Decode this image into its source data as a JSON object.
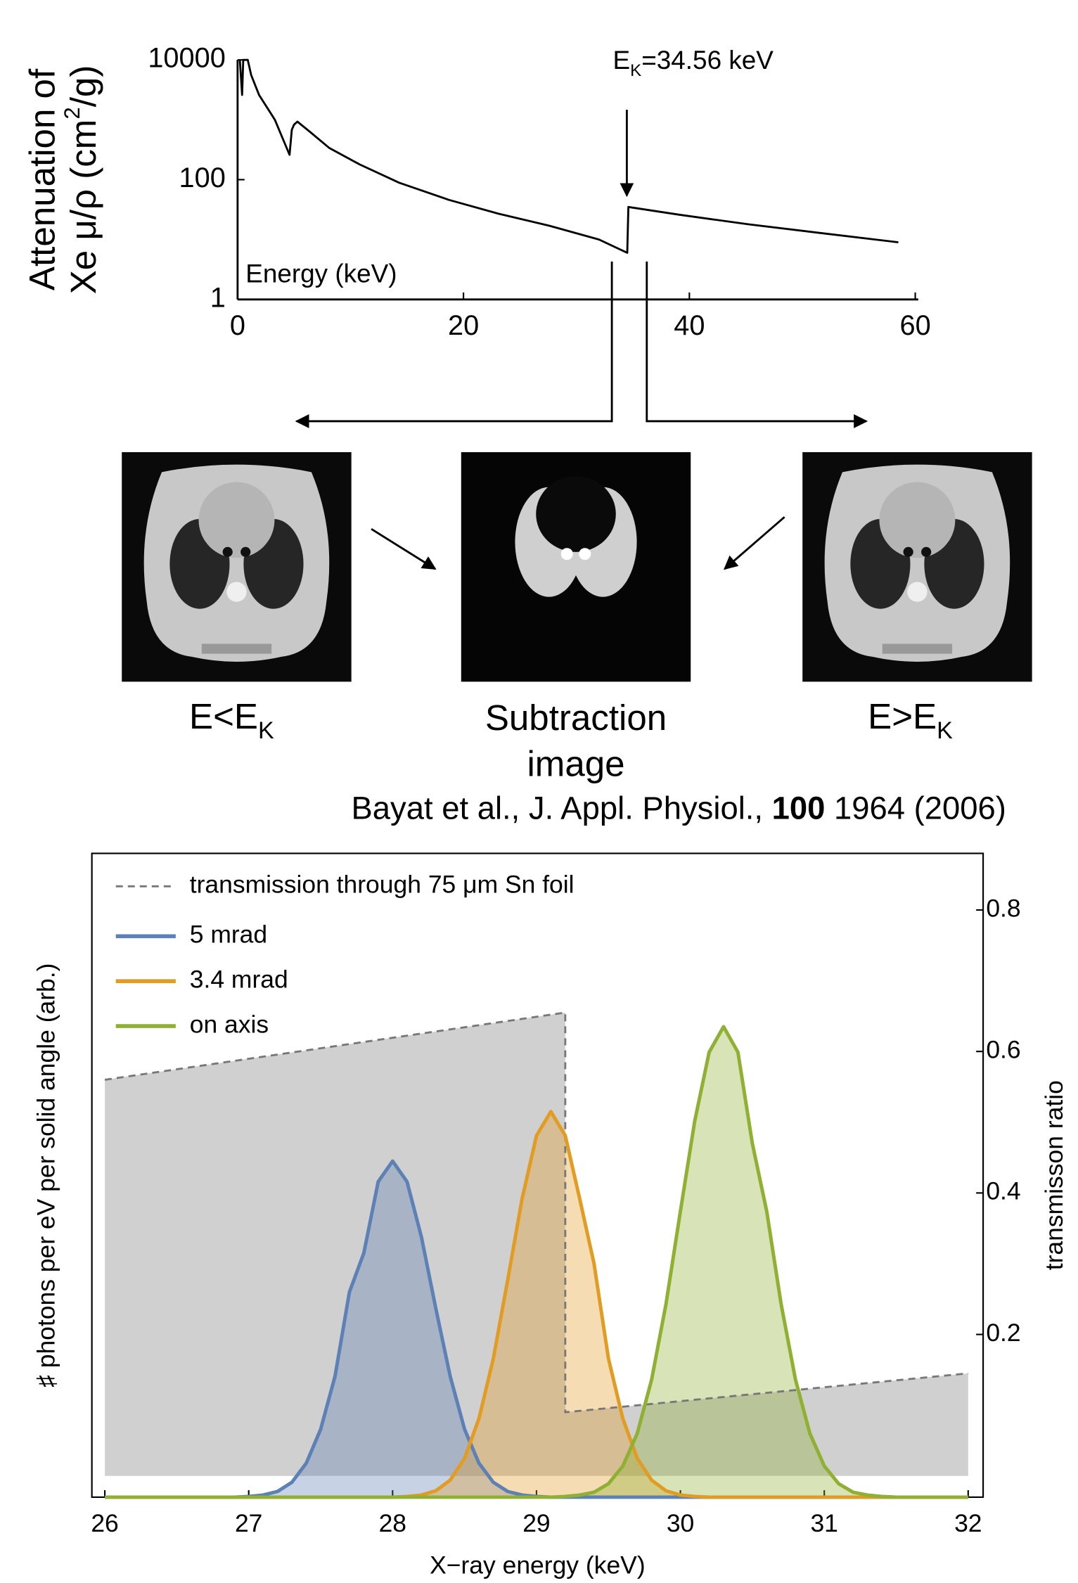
{
  "chart_data": [
    {
      "type": "line",
      "frame": false,
      "log_y": true,
      "ylabel": [
        "Attenuation of",
        "Xe μ/ρ (cm",
        "2",
        "/g)"
      ],
      "xlabel": "Energy (keV)",
      "annotation": [
        "E",
        "K",
        "=34.56 keV"
      ],
      "x": [
        0.2,
        0.4,
        0.5,
        0.9,
        1.2,
        1.9,
        3.3,
        4.6,
        4.8,
        5.0,
        5.3,
        6.4,
        8.1,
        10.8,
        14.3,
        18.7,
        23.1,
        27.6,
        32.0,
        34.5,
        34.6,
        39.1,
        45.2,
        51.4,
        58.5
      ],
      "values": [
        10000,
        2600,
        10000,
        10000,
        5600,
        2600,
        1000,
        260,
        680,
        830,
        930,
        630,
        340,
        180,
        89,
        46,
        27,
        17,
        10,
        6,
        35,
        26,
        18,
        13,
        9
      ],
      "color": "#000000",
      "xlim": [
        0,
        60
      ],
      "ylim": [
        1,
        10000
      ],
      "xticks": [
        0,
        20,
        40,
        60
      ],
      "yticks": [
        1,
        100,
        10000
      ]
    },
    {
      "type": "line",
      "frame": true,
      "fill": true,
      "fill_opacity": 0.35,
      "legend": "top-left",
      "xlabel": "X−ray energy (keV)",
      "ylabel": "♯ photons per eV per solid angle (arb.)",
      "y2label": "transmisson ratio",
      "x": [
        26,
        26.1,
        26.2,
        26.3,
        26.4,
        26.5,
        26.6,
        26.7,
        26.8,
        26.9,
        27,
        27.1,
        27.2,
        27.3,
        27.4,
        27.5,
        27.6,
        27.7,
        27.8,
        27.9,
        28,
        28.1,
        28.2,
        28.3,
        28.4,
        28.5,
        28.6,
        28.7,
        28.8,
        28.9,
        29,
        29.1,
        29.2,
        29.3,
        29.4,
        29.5,
        29.6,
        29.7,
        29.8,
        29.9,
        30,
        30.1,
        30.2,
        30.3,
        30.4,
        30.5,
        30.6,
        30.7,
        30.8,
        30.9,
        31,
        31.1,
        31.2,
        31.3,
        31.4,
        31.5,
        31.6,
        31.7,
        31.8,
        31.9,
        32
      ],
      "series": [
        {
          "name": "transmission through 75 μm Sn foil",
          "color": "#777777",
          "dash": true,
          "axis": "y2",
          "x": [
            26,
            29.2,
            29.2,
            32
          ],
          "values": [
            0.56,
            0.655,
            0.09,
            0.145
          ]
        },
        {
          "name": "5 mrad",
          "color": "#5e81b5",
          "values": [
            0,
            0,
            0,
            0,
            0,
            0,
            0,
            0,
            0,
            0,
            0.001,
            0.003,
            0.008,
            0.021,
            0.048,
            0.096,
            0.171,
            0.29,
            0.345,
            0.446,
            0.475,
            0.446,
            0.368,
            0.267,
            0.171,
            0.096,
            0.048,
            0.021,
            0.008,
            0.003,
            0.001,
            0,
            0,
            0,
            0,
            0,
            0,
            0,
            0,
            0,
            0,
            0,
            0,
            0,
            0,
            0,
            0,
            0,
            0,
            0,
            0,
            0,
            0,
            0,
            0,
            0,
            0,
            0,
            0,
            0,
            0
          ]
        },
        {
          "name": "3.4 mrad",
          "color": "#e19c24",
          "values": [
            0,
            0,
            0,
            0,
            0,
            0,
            0,
            0,
            0,
            0,
            0,
            0,
            0,
            0,
            0,
            0,
            0,
            0,
            0,
            0,
            0,
            0.001,
            0.003,
            0.009,
            0.024,
            0.055,
            0.111,
            0.196,
            0.307,
            0.422,
            0.511,
            0.545,
            0.511,
            0.422,
            0.33,
            0.196,
            0.111,
            0.055,
            0.024,
            0.009,
            0.003,
            0.001,
            0,
            0,
            0,
            0,
            0,
            0,
            0,
            0,
            0,
            0,
            0,
            0,
            0,
            0,
            0,
            0,
            0,
            0,
            0
          ]
        },
        {
          "name": "on axis",
          "color": "#8fb032",
          "values": [
            0,
            0,
            0,
            0,
            0,
            0,
            0,
            0,
            0,
            0,
            0,
            0,
            0,
            0,
            0,
            0,
            0,
            0,
            0,
            0,
            0,
            0,
            0,
            0,
            0,
            0,
            0,
            0,
            0,
            0,
            0,
            0,
            0.001,
            0.003,
            0.007,
            0.019,
            0.044,
            0.09,
            0.166,
            0.273,
            0.404,
            0.532,
            0.629,
            0.665,
            0.629,
            0.5,
            0.404,
            0.273,
            0.166,
            0.09,
            0.044,
            0.019,
            0.007,
            0.003,
            0.001,
            0,
            0,
            0,
            0,
            0,
            0
          ]
        }
      ],
      "xlim": [
        25.91,
        32.104
      ],
      "ylim": [
        0,
        0.91
      ],
      "y2lim": [
        -0.03,
        0.88
      ],
      "xticks": [
        26,
        27,
        28,
        29,
        30,
        31,
        32
      ],
      "y2ticks": [
        0.2,
        0.4,
        0.6,
        0.8
      ]
    }
  ],
  "figure": {
    "panel_labels": [
      [
        "E<E",
        "K"
      ],
      [
        "Subtraction",
        "image"
      ],
      [
        "E>E",
        "K"
      ]
    ],
    "citation": [
      "Bayat et al., J. Appl. Physiol., ",
      "100",
      " 1964 (2006)"
    ]
  }
}
